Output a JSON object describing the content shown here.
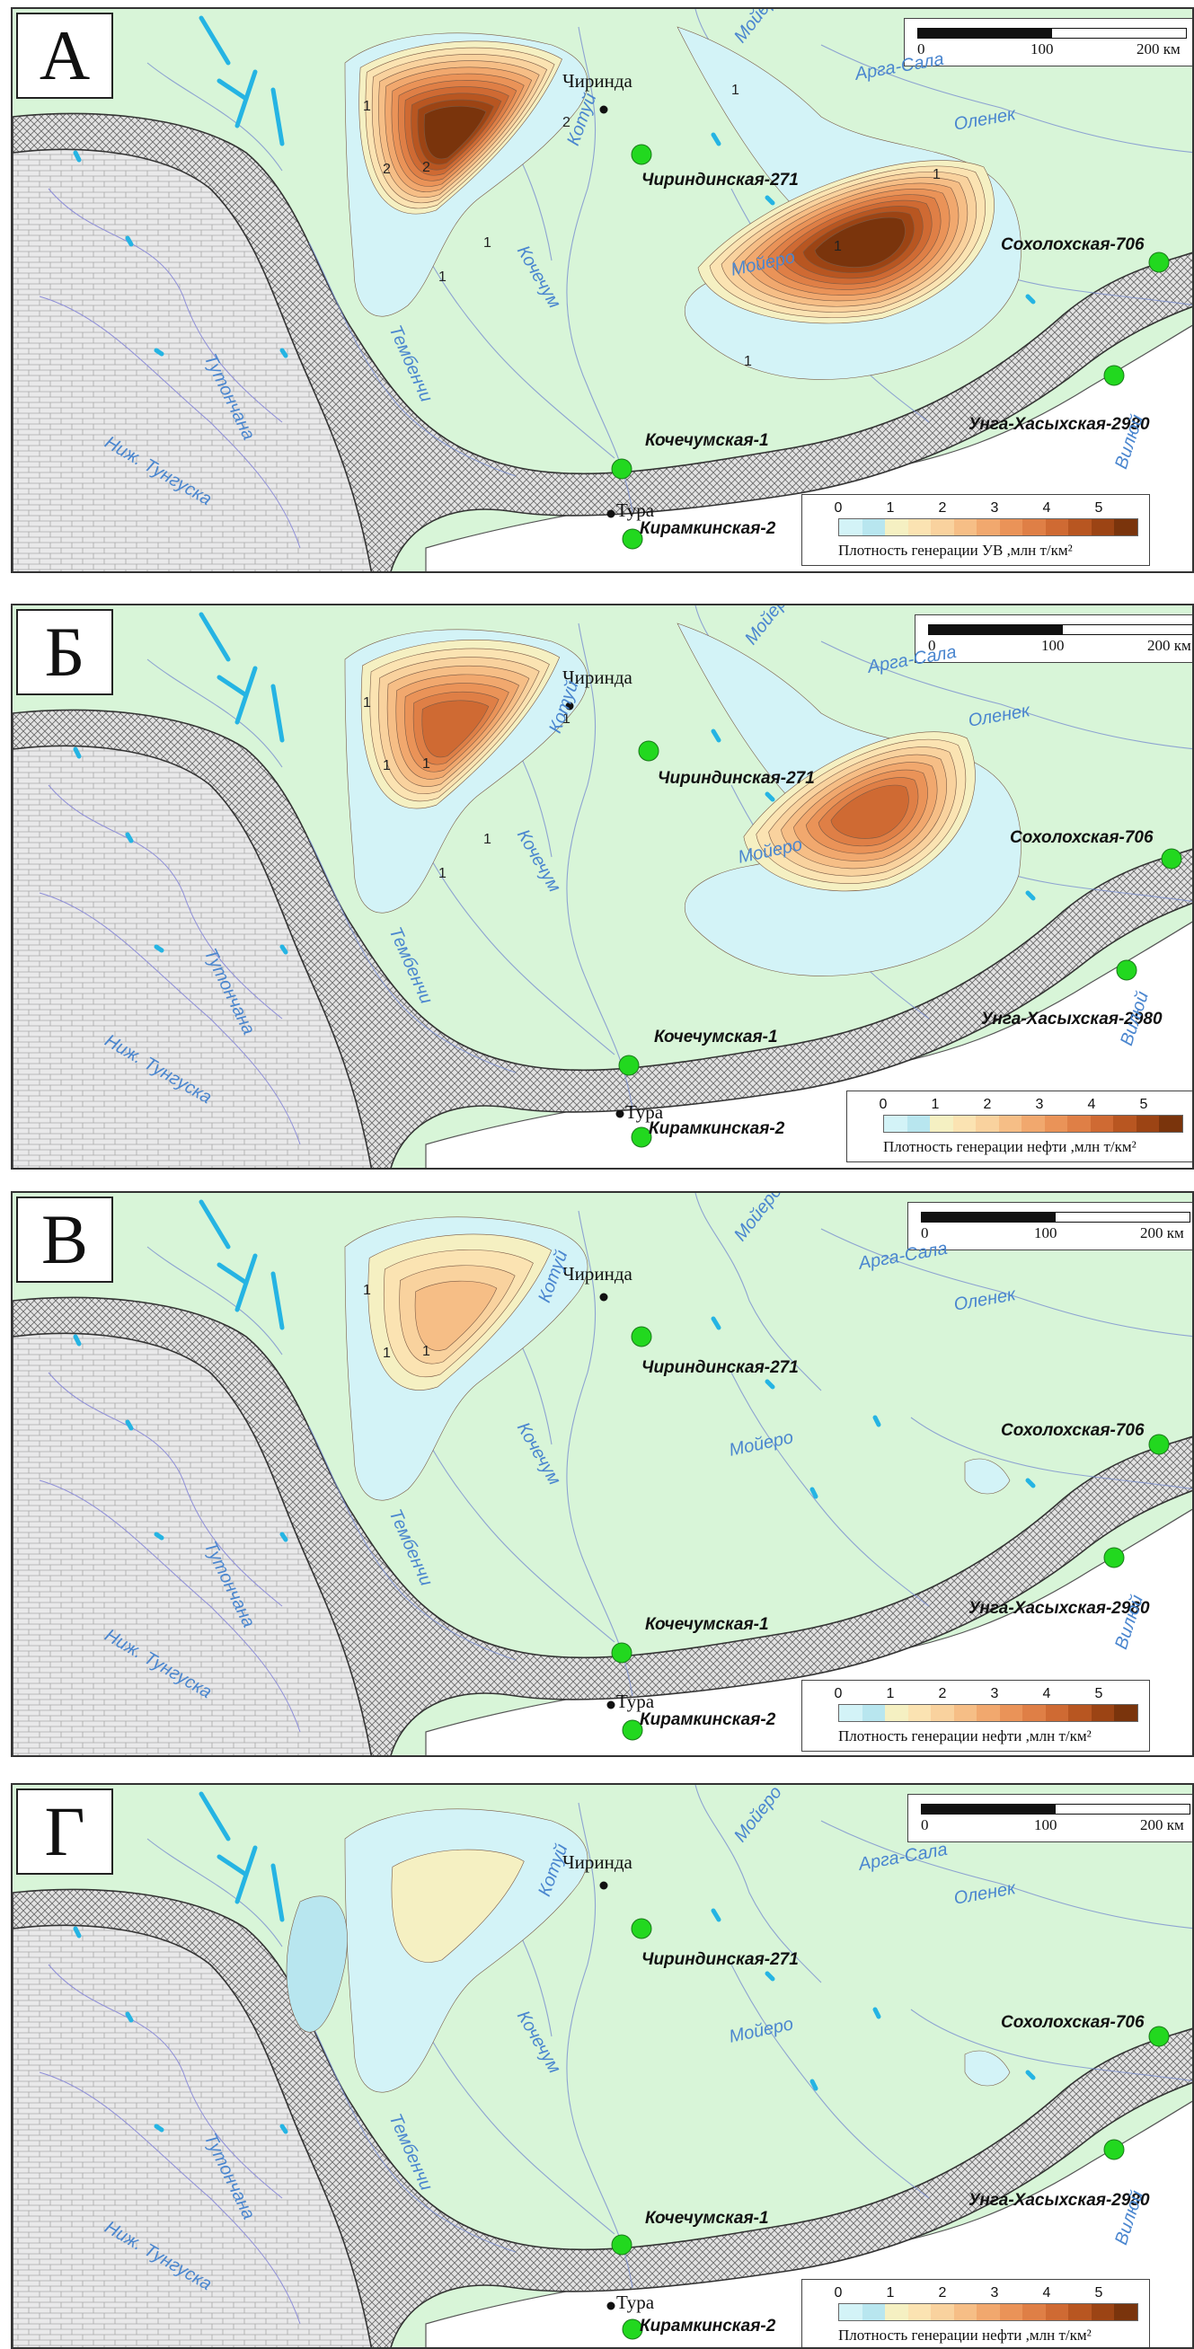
{
  "panels": [
    {
      "letter": "А",
      "legend_ticks": [
        "0",
        "1",
        "2",
        "3",
        "4",
        "5"
      ],
      "legend_caption": "Плотность генерации УВ ,млн т/км²",
      "contour_labels": [
        "1",
        "2",
        "2",
        "1",
        "1",
        "2",
        "1",
        "1",
        "1",
        "1"
      ]
    },
    {
      "letter": "Б",
      "legend_ticks": [
        "0",
        "1",
        "2",
        "3",
        "4",
        "5"
      ],
      "legend_caption": "Плотность генерации нефти ,млн т/км²",
      "contour_labels": [
        "1",
        "1",
        "1",
        "1",
        "1",
        "1"
      ]
    },
    {
      "letter": "В",
      "legend_ticks": [
        "0",
        "1",
        "2",
        "3",
        "4",
        "5"
      ],
      "legend_caption": "Плотность генерации нефти ,млн т/км²",
      "contour_labels": [
        "1",
        "1",
        "1"
      ]
    },
    {
      "letter": "Г",
      "legend_ticks": [
        "0",
        "1",
        "2",
        "3",
        "4",
        "5"
      ],
      "legend_caption": "Плотность генерации нефти ,млн т/км²",
      "contour_labels": []
    }
  ],
  "scale_bar": {
    "ticks": [
      "0",
      "100",
      "200 км"
    ]
  },
  "settlements": {
    "chirinda": "Чиринда",
    "tura": "Тура"
  },
  "wells": {
    "chirindinskaya": "Чириндинская-271",
    "sokholokhskaya": "Сохолохская-706",
    "unga": "Унга-Хасыхская-2980",
    "kochechumskaya": "Кочечумская-1",
    "kiramkinskaya": "Кирамкинская-2"
  },
  "rivers": {
    "moiero": "Мойеро",
    "arga_sala": "Арга-Сала",
    "olenek": "Оленек",
    "moiero2": "Мойеро",
    "katui": "Котуй",
    "kochechum": "Кочечум",
    "tembenchi": "Тембенчи",
    "tutonchana": "Тутончана",
    "nizh_tunguska": "Ниж. Тунгуска",
    "viliui": "Вилюй"
  },
  "colors": {
    "background": "#d8f5d8",
    "platform_fill": "#e9e9ea",
    "hatch_band": "#bdbdbd",
    "south_area": "#ffffff",
    "river_lines": "#7b8fd0",
    "lakes": "#25b4e3",
    "well_marker": "#22d81f",
    "legend_ramp": [
      "#d3f3f7",
      "#b8e6ef",
      "#f5f0c2",
      "#fbe3b2",
      "#f9d29e",
      "#f6be86",
      "#f1a86e",
      "#ea9358",
      "#df7f46",
      "#cf6a33",
      "#b85621",
      "#9c4414",
      "#7a340c"
    ]
  }
}
